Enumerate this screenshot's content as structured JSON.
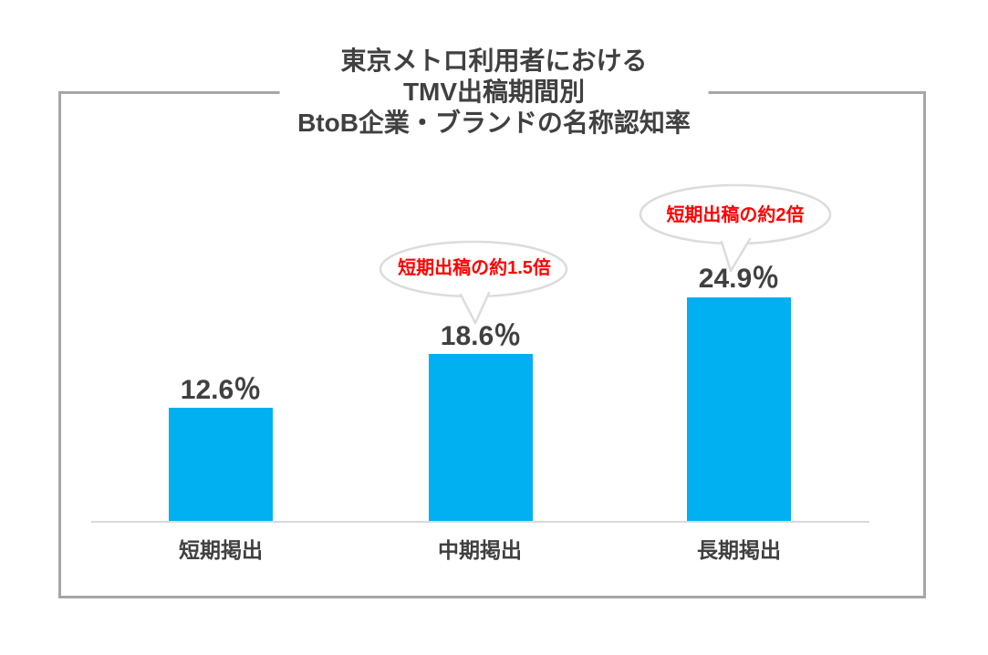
{
  "chart_data": {
    "type": "bar",
    "title_lines": [
      "東京メトロ利用者における",
      "TMV出稿期間別",
      "BtoB企業・ブランドの名称認知率"
    ],
    "categories": [
      "短期掲出",
      "中期掲出",
      "長期掲出"
    ],
    "values": [
      12.6,
      18.6,
      24.9
    ],
    "value_labels": [
      "12.6％",
      "18.6％",
      "24.9％"
    ],
    "unit": "%",
    "ylim": [
      0,
      28
    ],
    "grid": false,
    "legend": false,
    "annotations": [
      {
        "target_category": "中期掲出",
        "target_index": 1,
        "text": "短期出稿の約1.5倍"
      },
      {
        "target_category": "長期掲出",
        "target_index": 2,
        "text": "短期出稿の約2倍"
      }
    ],
    "colors": {
      "bar": "#00B0F0",
      "annotation_text": "#FF0000",
      "label_text": "#404040",
      "axis_line": "#D9D9D9",
      "frame_border": "#A6A6A6",
      "bubble_border": "#DCDCDC"
    }
  }
}
